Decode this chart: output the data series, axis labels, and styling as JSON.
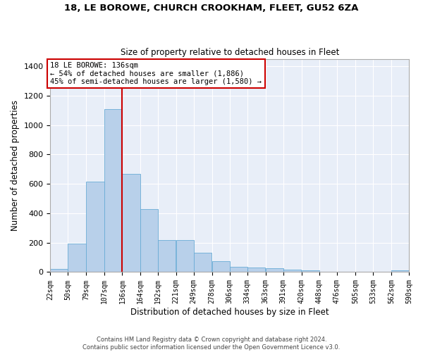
{
  "title": "18, LE BOROWE, CHURCH CROOKHAM, FLEET, GU52 6ZA",
  "subtitle": "Size of property relative to detached houses in Fleet",
  "xlabel": "Distribution of detached houses by size in Fleet",
  "ylabel": "Number of detached properties",
  "bar_color": "#b8d0ea",
  "bar_edge_color": "#6aacd6",
  "background_color": "#e8eef8",
  "grid_color": "#d4dce8",
  "vline_color": "#cc0000",
  "vline_x": 136,
  "annotation_text": "18 LE BOROWE: 136sqm\n← 54% of detached houses are smaller (1,886)\n45% of semi-detached houses are larger (1,580) →",
  "annotation_box_color": "#ffffff",
  "annotation_box_edge": "#cc0000",
  "bins_left": [
    22,
    50,
    79,
    107,
    136,
    164,
    192,
    221,
    249,
    278,
    306,
    334,
    363,
    391,
    420,
    448,
    476,
    505,
    533,
    562
  ],
  "bin_width": 28,
  "bar_heights": [
    20,
    195,
    615,
    1110,
    670,
    430,
    220,
    220,
    130,
    72,
    35,
    30,
    25,
    17,
    10,
    0,
    0,
    0,
    0,
    10
  ],
  "ylim": [
    0,
    1450
  ],
  "yticks": [
    0,
    200,
    400,
    600,
    800,
    1000,
    1200,
    1400
  ],
  "figsize": [
    6.0,
    5.0
  ],
  "dpi": 100,
  "footer_text": "Contains HM Land Registry data © Crown copyright and database right 2024.\nContains public sector information licensed under the Open Government Licence v3.0.",
  "tick_labels": [
    "22sqm",
    "50sqm",
    "79sqm",
    "107sqm",
    "136sqm",
    "164sqm",
    "192sqm",
    "221sqm",
    "249sqm",
    "278sqm",
    "306sqm",
    "334sqm",
    "363sqm",
    "391sqm",
    "420sqm",
    "448sqm",
    "476sqm",
    "505sqm",
    "533sqm",
    "562sqm",
    "590sqm"
  ]
}
